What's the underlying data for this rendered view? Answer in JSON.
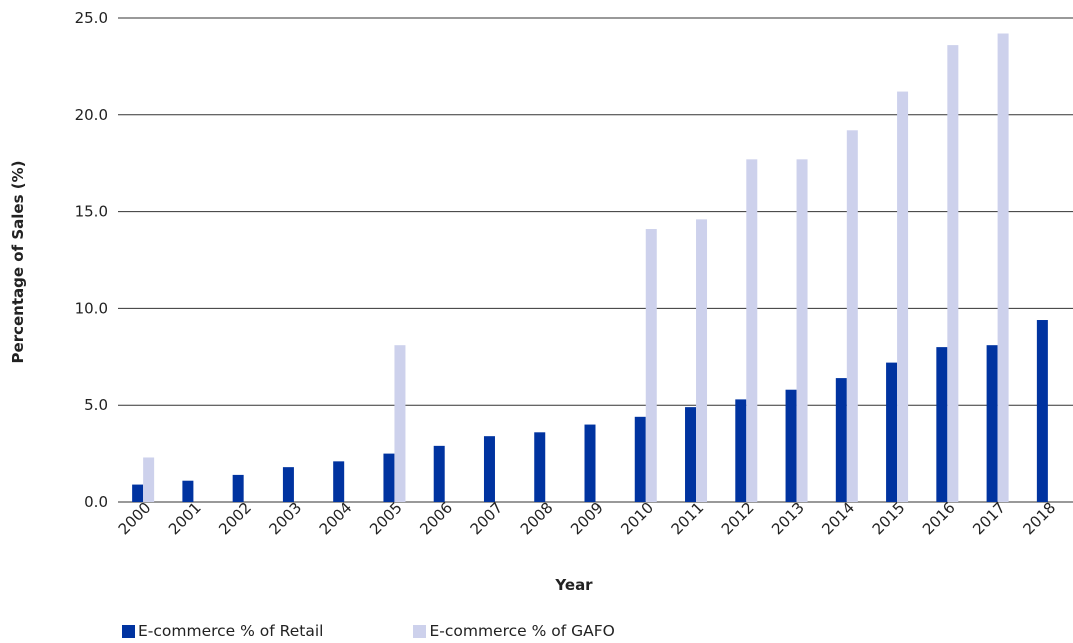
{
  "chart_data": {
    "type": "bar",
    "categories": [
      "2000",
      "2001",
      "2002",
      "2003",
      "2004",
      "2005",
      "2006",
      "2007",
      "2008",
      "2009",
      "2010",
      "2011",
      "2012",
      "2013",
      "2014",
      "2015",
      "2016",
      "2017",
      "2018"
    ],
    "series": [
      {
        "name": "E-commerce % of Retail",
        "color": "#0033a0",
        "values": [
          0.9,
          1.1,
          1.4,
          1.8,
          2.1,
          2.5,
          2.9,
          3.4,
          3.6,
          4.0,
          4.4,
          4.9,
          5.3,
          5.8,
          6.4,
          7.2,
          8.0,
          8.1,
          9.4
        ]
      },
      {
        "name": "E-commerce % of GAFO",
        "color": "#cdd1ec",
        "values": [
          2.3,
          null,
          null,
          null,
          null,
          8.1,
          null,
          null,
          null,
          null,
          14.1,
          14.6,
          17.7,
          17.7,
          19.2,
          21.2,
          23.6,
          24.2,
          null
        ]
      }
    ],
    "xlabel": "Year",
    "ylabel": "Percentage of Sales (%)",
    "ylim": [
      0,
      25
    ],
    "yticks": [
      "0.0",
      "5.0",
      "10.0",
      "15.0",
      "20.0",
      "25.0"
    ],
    "grid": true,
    "legend_position": "bottom-left"
  }
}
